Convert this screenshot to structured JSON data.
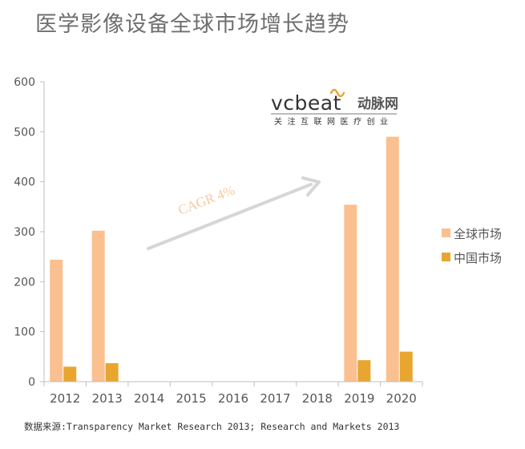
{
  "title": "医学影像设备全球市场增长趋势",
  "source": "数据来源:Transparency Market Research 2013; Research and Markets 2013",
  "logo": {
    "brand": "vcbeat",
    "brand_cn": "动脉网",
    "tagline": "关注互联网医疗创业"
  },
  "annotation": "CAGR 4%",
  "colors": {
    "global": "#FBC08F",
    "china": "#E8A631",
    "axis": "#bfbfbf",
    "text": "#555555",
    "arrow": "#d6d6d6",
    "annotation": "#F7C9A0",
    "logo_accent": "#E8A631"
  },
  "chart_data": {
    "type": "bar",
    "title": "医学影像设备全球市场增长趋势",
    "xlabel": "",
    "ylabel": "",
    "categories": [
      "2012",
      "2013",
      "2014",
      "2015",
      "2016",
      "2017",
      "2018",
      "2019",
      "2020"
    ],
    "ylim": [
      0,
      600
    ],
    "yticks": [
      "0",
      "100",
      "200",
      "300",
      "400",
      "500",
      "600"
    ],
    "grid": false,
    "legend_position": "right",
    "series": [
      {
        "name": "全球市场",
        "values": [
          244,
          302,
          null,
          null,
          null,
          null,
          null,
          354,
          490
        ]
      },
      {
        "name": "中国市场",
        "values": [
          30,
          37,
          null,
          null,
          null,
          null,
          null,
          43,
          60
        ]
      }
    ]
  }
}
